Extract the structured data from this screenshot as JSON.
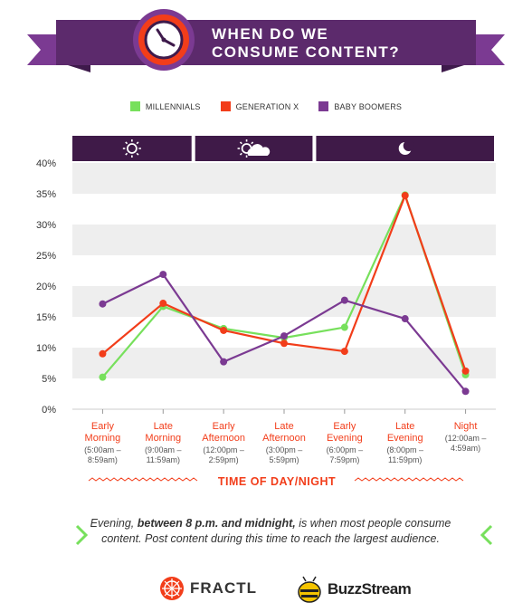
{
  "header": {
    "title_line1": "WHEN DO WE",
    "title_line2": "CONSUME CONTENT?",
    "icon": "clock-icon"
  },
  "colors": {
    "banner": "#5c2a6c",
    "banner_dark": "#3e1a4b",
    "orange": "#f23d1a",
    "millennials": "#77e05c",
    "generation_x": "#f23d1a",
    "baby_boomers": "#7b3a92",
    "band": "#3f1a48"
  },
  "chart_data": {
    "type": "line",
    "title": "WHEN DO WE CONSUME CONTENT?",
    "xlabel": "TIME OF DAY/NIGHT",
    "ylabel": "",
    "ylim": [
      0,
      40
    ],
    "yticks": [
      "0%",
      "5%",
      "10%",
      "15%",
      "20%",
      "25%",
      "30%",
      "35%",
      "40%"
    ],
    "grid": "alternating-bands",
    "legend_position": "top-center",
    "categories": [
      "Early Morning",
      "Late Morning",
      "Early Afternoon",
      "Late Afternoon",
      "Early Evening",
      "Late Evening",
      "Night"
    ],
    "category_ranges": [
      "(5:00am – 8:59am)",
      "(9:00am – 11:59am)",
      "(12:00pm – 2:59pm)",
      "(3:00pm – 5:59pm)",
      "(6:00pm – 7:59pm)",
      "(8:00pm – 11:59pm)",
      "(12:00am – 4:59am)"
    ],
    "series": [
      {
        "name": "MILLENNIALS",
        "color": "#77e05c",
        "values": [
          5.2,
          16.7,
          13.1,
          11.6,
          13.3,
          34.8,
          5.6
        ]
      },
      {
        "name": "GENERATION X",
        "color": "#f23d1a",
        "values": [
          9.0,
          17.2,
          12.8,
          10.7,
          9.4,
          34.7,
          6.2
        ]
      },
      {
        "name": "BABY BOOMERS",
        "color": "#7b3a92",
        "values": [
          17.1,
          21.9,
          7.7,
          11.9,
          17.7,
          14.7,
          2.9
        ]
      }
    ],
    "time_bands": [
      {
        "icon": "sun-icon",
        "span": [
          0,
          1
        ]
      },
      {
        "icon": "sun-cloud-icon",
        "span": [
          2,
          3
        ]
      },
      {
        "icon": "moon-icon",
        "span": [
          4,
          6
        ]
      }
    ]
  },
  "caption": {
    "part1": "Evening, ",
    "bold": "between 8 p.m. and midnight,",
    "part2": " is when most people consume content. Post content during this time to reach the largest audience."
  },
  "logos": {
    "fractl": "FRACTL",
    "buzzstream": "BuzzStream"
  }
}
